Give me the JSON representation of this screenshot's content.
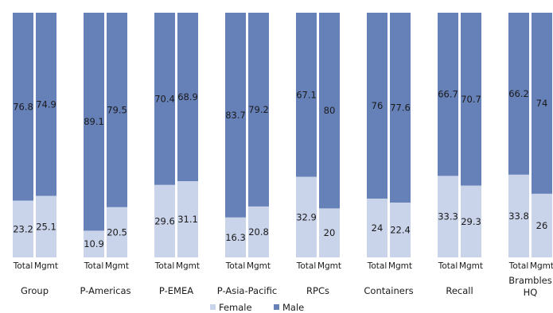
{
  "chart_data": {
    "type": "bar",
    "stacked": true,
    "normalized_percent": true,
    "ylim": [
      0,
      100
    ],
    "grid": false,
    "legend_position": "bottom-center",
    "colors": {
      "Female": "#c9d3e9",
      "Male": "#6680b8"
    },
    "groups": [
      {
        "label": "Group",
        "bars": [
          {
            "label": "Total",
            "female": 23.2,
            "male": 76.8
          },
          {
            "label": "Mgmt",
            "female": 25.1,
            "male": 74.9
          }
        ]
      },
      {
        "label": "P-Americas",
        "bars": [
          {
            "label": "Total",
            "female": 10.9,
            "male": 89.1
          },
          {
            "label": "Mgmt",
            "female": 20.5,
            "male": 79.5
          }
        ]
      },
      {
        "label": "P-EMEA",
        "bars": [
          {
            "label": "Total",
            "female": 29.6,
            "male": 70.4
          },
          {
            "label": "Mgmt",
            "female": 31.1,
            "male": 68.9
          }
        ]
      },
      {
        "label": "P-Asia-Pacific",
        "bars": [
          {
            "label": "Total",
            "female": 16.3,
            "male": 83.7
          },
          {
            "label": "Mgmt",
            "female": 20.8,
            "male": 79.2
          }
        ]
      },
      {
        "label": "RPCs",
        "bars": [
          {
            "label": "Total",
            "female": 32.9,
            "male": 67.1
          },
          {
            "label": "Mgmt",
            "female": 20,
            "male": 80
          }
        ]
      },
      {
        "label": "Containers",
        "bars": [
          {
            "label": "Total",
            "female": 24,
            "male": 76
          },
          {
            "label": "Mgmt",
            "female": 22.4,
            "male": 77.6
          }
        ]
      },
      {
        "label": "Recall",
        "bars": [
          {
            "label": "Total",
            "female": 33.3,
            "male": 66.7
          },
          {
            "label": "Mgmt",
            "female": 29.3,
            "male": 70.7
          }
        ]
      },
      {
        "label": [
          "Brambles",
          "HQ"
        ],
        "bars": [
          {
            "label": "Total",
            "female": 33.8,
            "male": 66.2
          },
          {
            "label": "Mgmt",
            "female": 26,
            "male": 74
          }
        ]
      }
    ],
    "legend": [
      {
        "name": "Female",
        "color": "#c9d3e9"
      },
      {
        "name": "Male",
        "color": "#6680b8"
      }
    ]
  }
}
